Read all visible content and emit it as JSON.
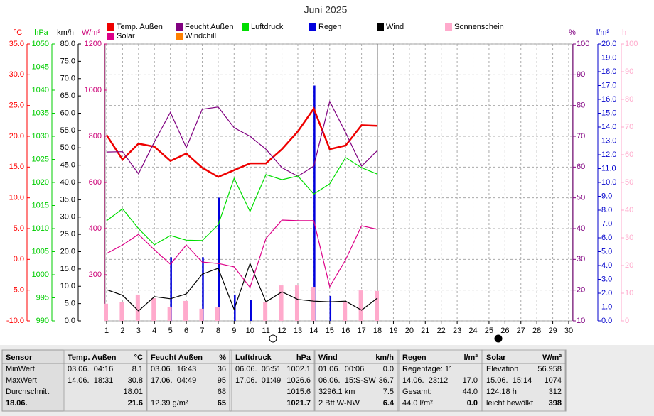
{
  "chart_data": {
    "type": "multi-axis",
    "title": "Juni 2025",
    "x": [
      1,
      2,
      3,
      4,
      5,
      6,
      7,
      8,
      9,
      10,
      11,
      12,
      13,
      14,
      15,
      16,
      17,
      18
    ],
    "xlim": [
      1,
      30
    ],
    "xticks": [
      1,
      2,
      3,
      4,
      5,
      6,
      7,
      8,
      9,
      10,
      11,
      12,
      13,
      14,
      15,
      16,
      17,
      18,
      19,
      20,
      21,
      22,
      23,
      24,
      25,
      26,
      27,
      28,
      29,
      30
    ],
    "grid": true,
    "axes": {
      "temp": {
        "unit": "°C",
        "color": "#ff0000",
        "lim": [
          -10,
          35
        ],
        "ticks": [
          {
            "value": 35,
            "label": "35.0"
          },
          {
            "value": 30,
            "label": "30.0"
          },
          {
            "value": 25,
            "label": "25.0"
          },
          {
            "value": 20,
            "label": "20.0"
          },
          {
            "value": 15,
            "label": "15.0"
          },
          {
            "value": 10,
            "label": "10.0"
          },
          {
            "value": 5,
            "label": "5.0"
          },
          {
            "value": 0,
            "label": "0.0"
          },
          {
            "value": -5,
            "label": "-5.0"
          },
          {
            "value": -10,
            "label": "-10.0"
          }
        ]
      },
      "press": {
        "unit": "hPa",
        "color": "#00cc00",
        "lim": [
          990,
          1050
        ],
        "ticks": [
          1050,
          1045,
          1040,
          1035,
          1030,
          1025,
          1020,
          1015,
          1010,
          1005,
          1000,
          995,
          990
        ]
      },
      "wind": {
        "unit": "km/h",
        "color": "#000000",
        "lim": [
          0,
          80
        ],
        "ticks": [
          {
            "value": 80,
            "label": "80.0"
          },
          {
            "value": 75,
            "label": "75.0"
          },
          {
            "value": 70,
            "label": "70.0"
          },
          {
            "value": 65,
            "label": "65.0"
          },
          {
            "value": 60,
            "label": "60.0"
          },
          {
            "value": 55,
            "label": "55.0"
          },
          {
            "value": 50,
            "label": "50.0"
          },
          {
            "value": 45,
            "label": "45.0"
          },
          {
            "value": 40,
            "label": "40.0"
          },
          {
            "value": 35,
            "label": "35.0"
          },
          {
            "value": 30,
            "label": "30.0"
          },
          {
            "value": 25,
            "label": "25.0"
          },
          {
            "value": 20,
            "label": "20.0"
          },
          {
            "value": 15,
            "label": "15.0"
          },
          {
            "value": 10,
            "label": "10.0"
          },
          {
            "value": 5,
            "label": "5.0"
          },
          {
            "value": 0,
            "label": "0.0"
          }
        ]
      },
      "solar": {
        "unit": "W/m²",
        "color": "#cc0077",
        "lim": [
          0,
          1200
        ],
        "ticks": [
          1200,
          1000,
          800,
          600,
          400,
          200
        ]
      },
      "hum": {
        "unit": "%",
        "color": "#800080",
        "lim": [
          10,
          100
        ],
        "ticks": [
          100,
          90,
          80,
          70,
          60,
          50,
          40,
          30,
          20,
          10
        ]
      },
      "rain": {
        "unit": "l/m²",
        "color": "#0000cc",
        "lim": [
          0,
          20
        ],
        "ticks": [
          {
            "value": 20,
            "label": "20.0"
          },
          {
            "value": 19,
            "label": "19.0"
          },
          {
            "value": 18,
            "label": "18.0"
          },
          {
            "value": 17,
            "label": "17.0"
          },
          {
            "value": 16,
            "label": "16.0"
          },
          {
            "value": 15,
            "label": "15.0"
          },
          {
            "value": 14,
            "label": "14.0"
          },
          {
            "value": 13,
            "label": "13.0"
          },
          {
            "value": 12,
            "label": "12.0"
          },
          {
            "value": 11,
            "label": "11.0"
          },
          {
            "value": 10,
            "label": "10.0"
          },
          {
            "value": 9,
            "label": "9.0"
          },
          {
            "value": 8,
            "label": "8.0"
          },
          {
            "value": 7,
            "label": "7.0"
          },
          {
            "value": 6,
            "label": "6.0"
          },
          {
            "value": 5,
            "label": "5.0"
          },
          {
            "value": 4,
            "label": "4.0"
          },
          {
            "value": 3,
            "label": "3.0"
          },
          {
            "value": 2,
            "label": "2.0"
          },
          {
            "value": 1,
            "label": "1.0"
          },
          {
            "value": 0,
            "label": "0.0"
          }
        ]
      },
      "sun": {
        "unit": "h",
        "color": "#ffaacc",
        "lim": [
          0,
          100
        ],
        "ticks": [
          100,
          90,
          80,
          70,
          60,
          50,
          40,
          30,
          20,
          10,
          0
        ]
      }
    },
    "series": [
      {
        "name": "Temp. Außen",
        "color": "#ee0000",
        "axis": "temp",
        "mark": "line",
        "values": [
          20.2,
          16.2,
          18.8,
          18.3,
          16.0,
          17.2,
          14.9,
          13.4,
          14.5,
          15.6,
          15.6,
          17.9,
          20.8,
          24.5,
          17.9,
          18.5,
          21.8,
          21.7
        ]
      },
      {
        "name": "Feucht Außen",
        "color": "#800080",
        "axis": "hum",
        "mark": "line",
        "values": [
          64.9,
          65.0,
          57.8,
          68.2,
          77.8,
          66.3,
          78.8,
          79.5,
          72.8,
          70.0,
          65.8,
          59.8,
          57.0,
          60.3,
          81.3,
          71.2,
          60.3,
          65.4
        ]
      },
      {
        "name": "Luftdruck",
        "color": "#00dd00",
        "axis": "press",
        "mark": "line",
        "values": [
          1011.7,
          1014.3,
          1010.0,
          1006.5,
          1008.5,
          1007.5,
          1007.4,
          1010.8,
          1020.9,
          1013.7,
          1021.7,
          1020.6,
          1021.4,
          1017.5,
          1019.7,
          1025.4,
          1023.2,
          1021.8
        ]
      },
      {
        "name": "Regen",
        "color": "#0000dd",
        "axis": "rain",
        "mark": "bar",
        "values": [
          0,
          0.3,
          0,
          1.6,
          4.6,
          1.4,
          4.6,
          8.9,
          1.9,
          1.5,
          0,
          0,
          0,
          17.0,
          1.8,
          0,
          0,
          0
        ]
      },
      {
        "name": "Wind",
        "color": "#000000",
        "axis": "wind",
        "mark": "line",
        "values": [
          9.0,
          7.4,
          2.9,
          7.0,
          6.4,
          7.8,
          13.5,
          15.2,
          3.3,
          16.6,
          5.5,
          8.4,
          6.2,
          5.7,
          5.5,
          5.7,
          3.1,
          6.6
        ]
      },
      {
        "name": "Sonnenschein",
        "color": "#ffaacc",
        "axis": "sun",
        "mark": "bar",
        "values": [
          6.2,
          6.7,
          9.5,
          8.2,
          5.1,
          7.2,
          4.4,
          4.9,
          0,
          0,
          6.9,
          12.8,
          12.8,
          12.3,
          0,
          6.9,
          11.0,
          10.8
        ]
      },
      {
        "name": "Solar",
        "color": "#dd0088",
        "axis": "solar",
        "mark": "line",
        "values": [
          292,
          329,
          375,
          308,
          246,
          329,
          255,
          249,
          234,
          145,
          357,
          437,
          434,
          434,
          148,
          265,
          412,
          397
        ]
      },
      {
        "name": "Windchill",
        "color": "#ff8000",
        "axis": "temp",
        "mark": "line",
        "values": [
          null,
          null,
          null,
          null,
          null,
          null,
          null,
          null,
          null,
          null,
          null,
          null,
          null,
          null,
          null,
          null,
          null,
          null
        ]
      }
    ]
  },
  "table": {
    "rows": [
      {
        "label": "Sensor",
        "cells": [
          {
            "text": "Temp. Außen",
            "value": "°C"
          },
          {
            "text": "Feucht Außen",
            "value": "%"
          },
          {
            "text": "Luftdruck",
            "value": "hPa"
          },
          {
            "text": "Wind",
            "value": "km/h"
          },
          {
            "text": "Regen",
            "value": "l/m²"
          },
          {
            "text": "Solar",
            "value": "W/m²"
          }
        ]
      },
      {
        "label": "MinWert",
        "cells": [
          {
            "text": "03.06.  04:16",
            "value": "8.1"
          },
          {
            "text": "03.06.  16:43",
            "value": "36"
          },
          {
            "text": "06.06.  05:51",
            "value": "1002.1"
          },
          {
            "text": "01.06.  00:06",
            "value": "0.0"
          },
          {
            "text": "Regentage: 11"
          },
          {
            "text": "Elevation",
            "value": "56.958"
          }
        ]
      },
      {
        "label": "MaxWert",
        "cells": [
          {
            "text": "14.06.  18:31",
            "value": "30.8"
          },
          {
            "text": "17.06.  04:49",
            "value": "95"
          },
          {
            "text": "17.06.  01:49",
            "value": "1026.6"
          },
          {
            "text": "06.06.  15:S-SW",
            "value": "36.7"
          },
          {
            "text": "14.06.  23:12",
            "value": "17.0"
          },
          {
            "text": "15.06.  15:14",
            "value": "1074"
          }
        ]
      },
      {
        "label": "Durchschnitt",
        "cells": [
          {
            "value": "18.01"
          },
          {
            "value": "68"
          },
          {
            "value": "1015.6"
          },
          {
            "text": "3296.1 km",
            "value": "7.5"
          },
          {
            "text": "Gesamt:",
            "value": "44.0"
          },
          {
            "text": "124:18 h",
            "value": "312"
          }
        ]
      },
      {
        "label": "18.06.",
        "cells": [
          {
            "value": "21.6"
          },
          {
            "text": "12.39 g/m²",
            "value": "65"
          },
          {
            "value": "1021.7"
          },
          {
            "text": "2 Bft W-NW",
            "value": "6.4"
          },
          {
            "text": "44.0 l/m²",
            "value": "0.0"
          },
          {
            "text": "leicht bewölkt",
            "value": "398"
          }
        ]
      }
    ]
  }
}
